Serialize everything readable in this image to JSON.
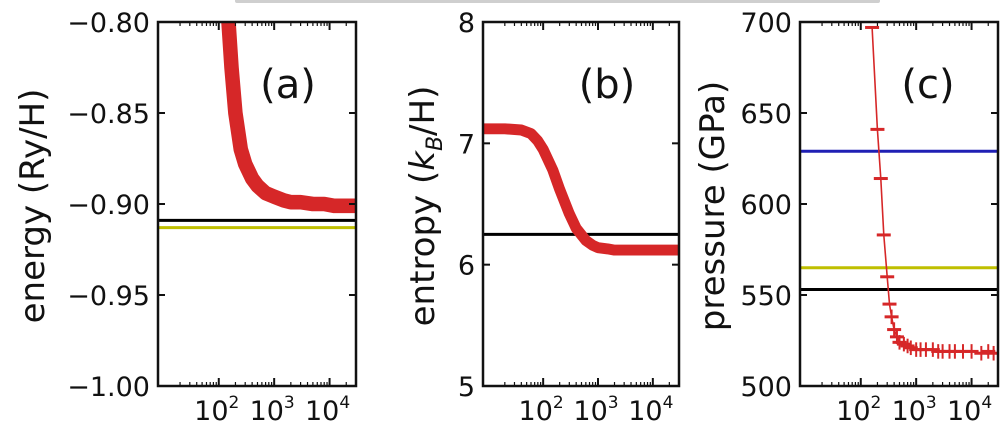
{
  "chart_data": [
    {
      "type": "line",
      "panel_label": "(a)",
      "ylabel": "energy (Ry/H)",
      "xscale": "log",
      "xlim": [
        8,
        30000
      ],
      "ylim": [
        -1.0,
        -0.8
      ],
      "xticks": [
        {
          "value": 100,
          "base": "10",
          "exp": "2"
        },
        {
          "value": 1000,
          "base": "10",
          "exp": "3"
        },
        {
          "value": 10000,
          "base": "10",
          "exp": "4"
        }
      ],
      "yticks": [
        {
          "value": -0.8,
          "label": "−0.80"
        },
        {
          "value": -0.85,
          "label": "−0.85"
        },
        {
          "value": -0.9,
          "label": "−0.90"
        },
        {
          "value": -0.95,
          "label": "−0.95"
        },
        {
          "value": -1.0,
          "label": "−1.00"
        }
      ],
      "series": [
        {
          "style": "band",
          "color": "#d62728",
          "x": [
            150,
            170,
            200,
            250,
            300,
            400,
            500,
            700,
            1000,
            1500,
            2000,
            3000,
            5000,
            8000,
            12000,
            20000,
            30000
          ],
          "y": [
            -0.8,
            -0.825,
            -0.85,
            -0.87,
            -0.878,
            -0.886,
            -0.89,
            -0.894,
            -0.896,
            -0.898,
            -0.899,
            -0.899,
            -0.9,
            -0.9,
            -0.901,
            -0.901,
            -0.901
          ],
          "width": 0.008
        }
      ],
      "hlines": [
        {
          "y": -0.909,
          "color": "#000000"
        },
        {
          "y": -0.913,
          "color": "#bfbf00"
        }
      ]
    },
    {
      "type": "line",
      "panel_label": "(b)",
      "ylabel_main": "entropy (",
      "ylabel_k": "k",
      "ylabel_sub": "B",
      "ylabel_end": "/H)",
      "xscale": "log",
      "xlim": [
        8,
        30000
      ],
      "ylim": [
        5,
        8
      ],
      "xticks": [
        {
          "value": 100,
          "base": "10",
          "exp": "2"
        },
        {
          "value": 1000,
          "base": "10",
          "exp": "3"
        },
        {
          "value": 10000,
          "base": "10",
          "exp": "4"
        }
      ],
      "yticks": [
        {
          "value": 5,
          "label": "5"
        },
        {
          "value": 6,
          "label": "6"
        },
        {
          "value": 7,
          "label": "7"
        },
        {
          "value": 8,
          "label": "8"
        }
      ],
      "series": [
        {
          "style": "band",
          "color": "#d62728",
          "x": [
            8,
            20,
            40,
            60,
            80,
            100,
            150,
            200,
            300,
            400,
            600,
            800,
            1000,
            1500,
            2000,
            4000,
            10000,
            30000
          ],
          "y": [
            7.12,
            7.12,
            7.11,
            7.08,
            7.02,
            6.95,
            6.78,
            6.62,
            6.42,
            6.3,
            6.2,
            6.16,
            6.14,
            6.13,
            6.12,
            6.12,
            6.12,
            6.12
          ],
          "width": 0.09
        }
      ],
      "hlines": [
        {
          "y": 6.25,
          "color": "#000000"
        }
      ]
    },
    {
      "type": "line",
      "panel_label": "(c)",
      "ylabel": "pressure (GPa)",
      "xscale": "log",
      "xlim": [
        8,
        30000
      ],
      "ylim": [
        500,
        700
      ],
      "xticks": [
        {
          "value": 100,
          "base": "10",
          "exp": "2"
        },
        {
          "value": 1000,
          "base": "10",
          "exp": "3"
        },
        {
          "value": 10000,
          "base": "10",
          "exp": "4"
        }
      ],
      "yticks": [
        {
          "value": 500,
          "label": "500"
        },
        {
          "value": 550,
          "label": "550"
        },
        {
          "value": 600,
          "label": "600"
        },
        {
          "value": 650,
          "label": "650"
        },
        {
          "value": 700,
          "label": "700"
        }
      ],
      "series": [
        {
          "style": "errorbar",
          "color": "#d62728",
          "x": [
            160,
            200,
            230,
            260,
            300,
            330,
            360,
            400,
            450,
            500,
            600,
            700,
            800,
            1000,
            1200,
            1500,
            2000,
            2500,
            3000,
            4000,
            5000,
            7000,
            10000,
            15000,
            20000,
            25000
          ],
          "y": [
            697,
            641,
            614,
            583,
            560,
            545,
            538,
            531,
            527,
            524,
            523,
            522,
            521,
            520,
            520,
            520,
            520,
            519,
            519,
            519,
            519,
            519,
            519,
            518,
            519,
            518
          ],
          "yerr": [
            0,
            0,
            0,
            0,
            0,
            0,
            4,
            4,
            4,
            4,
            4,
            4,
            4,
            4,
            4,
            4,
            4,
            4,
            4,
            4,
            4,
            4,
            4,
            4,
            4,
            4
          ]
        }
      ],
      "hlines": [
        {
          "y": 629,
          "color": "#1f1fb4"
        },
        {
          "y": 565,
          "color": "#bfbf00"
        },
        {
          "y": 553,
          "color": "#000000"
        }
      ]
    }
  ]
}
